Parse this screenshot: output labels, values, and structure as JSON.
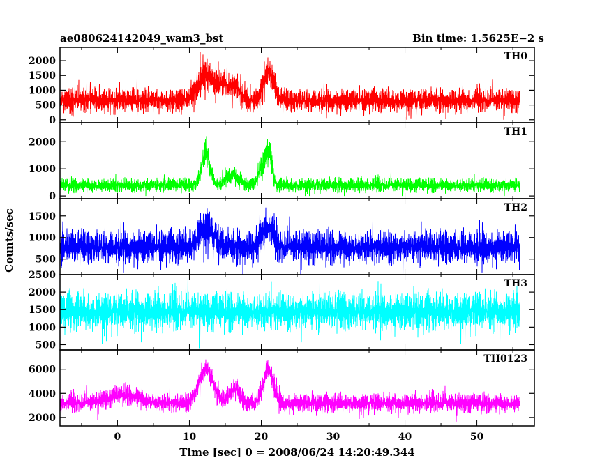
{
  "title_left": "ae080624142049_wam3_bst",
  "title_right": "Bin time: 1.5625E−2 s",
  "chart_data": {
    "type": "line",
    "xlabel": "Time [sec] 0 = 2008/06/24 14:20:49.344",
    "ylabel": "Counts/sec",
    "xlim": [
      -8,
      58
    ],
    "xticks": [
      0,
      10,
      20,
      30,
      40,
      50
    ],
    "x_range_data": [
      -8,
      56
    ],
    "bin_time_s": 0.015625,
    "grid": false,
    "panels": [
      {
        "name": "TH0",
        "color": "#ff0000",
        "ylim": [
          -100,
          2450
        ],
        "yticks": [
          0,
          500,
          1000,
          1500,
          2000
        ],
        "baseline": 650,
        "noise": 300,
        "floor": 0,
        "ceiling": 2400,
        "bursts": [
          {
            "t": 12.3,
            "amp": 900,
            "width": 1.5
          },
          {
            "t": 14.8,
            "amp": 500,
            "width": 1.2
          },
          {
            "t": 16.5,
            "amp": 350,
            "width": 1.0
          },
          {
            "t": 21.0,
            "amp": 1000,
            "width": 1.0
          }
        ]
      },
      {
        "name": "TH1",
        "color": "#00ff00",
        "ylim": [
          -100,
          2700
        ],
        "yticks": [
          0,
          1000,
          2000
        ],
        "baseline": 400,
        "noise": 200,
        "floor": 0,
        "ceiling": 2700,
        "bursts": [
          {
            "t": 12.3,
            "amp": 1200,
            "width": 0.8
          },
          {
            "t": 16.0,
            "amp": 400,
            "width": 1.2
          },
          {
            "t": 20.0,
            "amp": 600,
            "width": 0.6
          },
          {
            "t": 21.0,
            "amp": 1300,
            "width": 0.6
          }
        ]
      },
      {
        "name": "TH2",
        "color": "#0000ff",
        "ylim": [
          140,
          1900
        ],
        "yticks": [
          500,
          1000,
          1500
        ],
        "baseline": 780,
        "noise": 300,
        "floor": 150,
        "ceiling": 1900,
        "bursts": [
          {
            "t": 12.3,
            "amp": 450,
            "width": 1.5
          },
          {
            "t": 20.8,
            "amp": 500,
            "width": 1.0
          }
        ]
      },
      {
        "name": "TH3",
        "color": "#00ffff",
        "ylim": [
          350,
          2500
        ],
        "yticks": [
          500,
          1000,
          1500,
          2000,
          2500
        ],
        "baseline": 1450,
        "noise": 420,
        "floor": 400,
        "ceiling": 2500,
        "bursts": []
      },
      {
        "name": "TH0123",
        "color": "#ff00ff",
        "ylim": [
          1300,
          7600
        ],
        "yticks": [
          2000,
          4000,
          6000
        ],
        "baseline": 3200,
        "noise": 600,
        "floor": 1500,
        "ceiling": 7600,
        "bursts": [
          {
            "t": 1.0,
            "amp": 700,
            "width": 3.0
          },
          {
            "t": 12.3,
            "amp": 2800,
            "width": 1.4
          },
          {
            "t": 16.3,
            "amp": 1200,
            "width": 1.0
          },
          {
            "t": 21.0,
            "amp": 2800,
            "width": 1.0
          }
        ]
      }
    ]
  }
}
